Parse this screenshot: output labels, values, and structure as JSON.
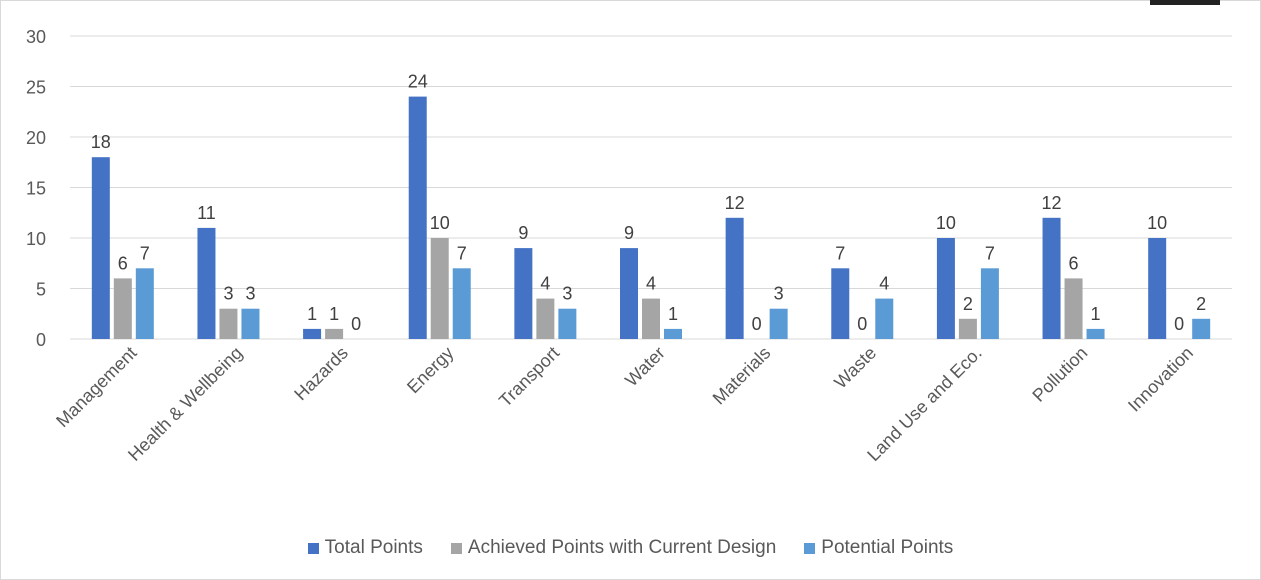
{
  "chart_data": {
    "type": "bar",
    "title": "",
    "xlabel": "",
    "ylabel": "",
    "ylim": [
      0,
      30
    ],
    "yticks": [
      0,
      5,
      10,
      15,
      20,
      25,
      30
    ],
    "grid": true,
    "legend_position": "bottom",
    "categories": [
      "Management",
      "Health & Wellbeing",
      "Hazards",
      "Energy",
      "Transport",
      "Water",
      "Materials",
      "Waste",
      "Land Use and Eco.",
      "Pollution",
      "Innovation"
    ],
    "series": [
      {
        "name": "Total Points",
        "color": "#4472c4",
        "values": [
          18,
          11,
          1,
          24,
          9,
          9,
          12,
          7,
          10,
          12,
          10
        ]
      },
      {
        "name": "Achieved Points with Current Design",
        "color": "#a5a5a5",
        "values": [
          6,
          3,
          1,
          10,
          4,
          4,
          0,
          0,
          2,
          6,
          0
        ]
      },
      {
        "name": "Potential Points",
        "color": "#5b9bd5",
        "values": [
          7,
          3,
          0,
          7,
          3,
          1,
          3,
          4,
          7,
          1,
          2
        ]
      }
    ]
  }
}
